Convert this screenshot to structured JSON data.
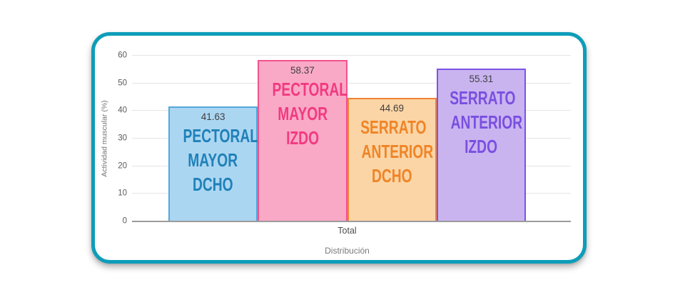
{
  "colors": {
    "card_border": "#0d9db9",
    "gridline": "#e4e4e4",
    "axis_baseline": "#9b9b9b",
    "value_label_text": "#3f3f3f"
  },
  "chart": {
    "y_axis": {
      "title": "Actividad muscular (%)",
      "ticks": [
        "0",
        "10",
        "20",
        "30",
        "40",
        "50",
        "60"
      ]
    },
    "x_axis": {
      "category_label": "Total",
      "title": "Distribución"
    },
    "bars": [
      {
        "name": "PECTORAL MAYOR DCHO",
        "value": "41.63",
        "lines": [
          "PECTORAL",
          "MAYOR",
          "DCHO"
        ],
        "fill": "#abd6f2",
        "border": "#56a7dc",
        "text_color": "#2081b8"
      },
      {
        "name": "PECTORAL MAYOR IZDO",
        "value": "58.37",
        "lines": [
          "PECTORAL",
          "MAYOR",
          "IZDO"
        ],
        "fill": "#f9a9c6",
        "border": "#f2538c",
        "text_color": "#f23a80"
      },
      {
        "name": "SERRATO ANTERIOR DCHO",
        "value": "44.69",
        "lines": [
          "SERRATO",
          "ANTERIOR",
          "DCHO"
        ],
        "fill": "#fbd5a6",
        "border": "#ef8434",
        "text_color": "#f08426"
      },
      {
        "name": "SERRATO ANTERIOR IZDO",
        "value": "55.31",
        "lines": [
          "SERRATO",
          "ANTERIOR",
          "IZDO"
        ],
        "fill": "#c9b4f0",
        "border": "#7c53e6",
        "text_color": "#7a4fe0"
      }
    ]
  },
  "chart_data": {
    "type": "bar",
    "categories": [
      "Total"
    ],
    "series": [
      {
        "name": "PECTORAL MAYOR DCHO",
        "values": [
          41.63
        ]
      },
      {
        "name": "PECTORAL MAYOR IZDO",
        "values": [
          58.37
        ]
      },
      {
        "name": "SERRATO ANTERIOR DCHO",
        "values": [
          44.69
        ]
      },
      {
        "name": "SERRATO ANTERIOR IZDO",
        "values": [
          55.31
        ]
      }
    ],
    "title": "",
    "xlabel": "Distribución",
    "ylabel": "Actividad muscular (%)",
    "ylim": [
      0,
      60
    ],
    "yticks": [
      0,
      10,
      20,
      30,
      40,
      50,
      60
    ],
    "grid": true,
    "legend": false,
    "value_labels": "inside-top"
  }
}
